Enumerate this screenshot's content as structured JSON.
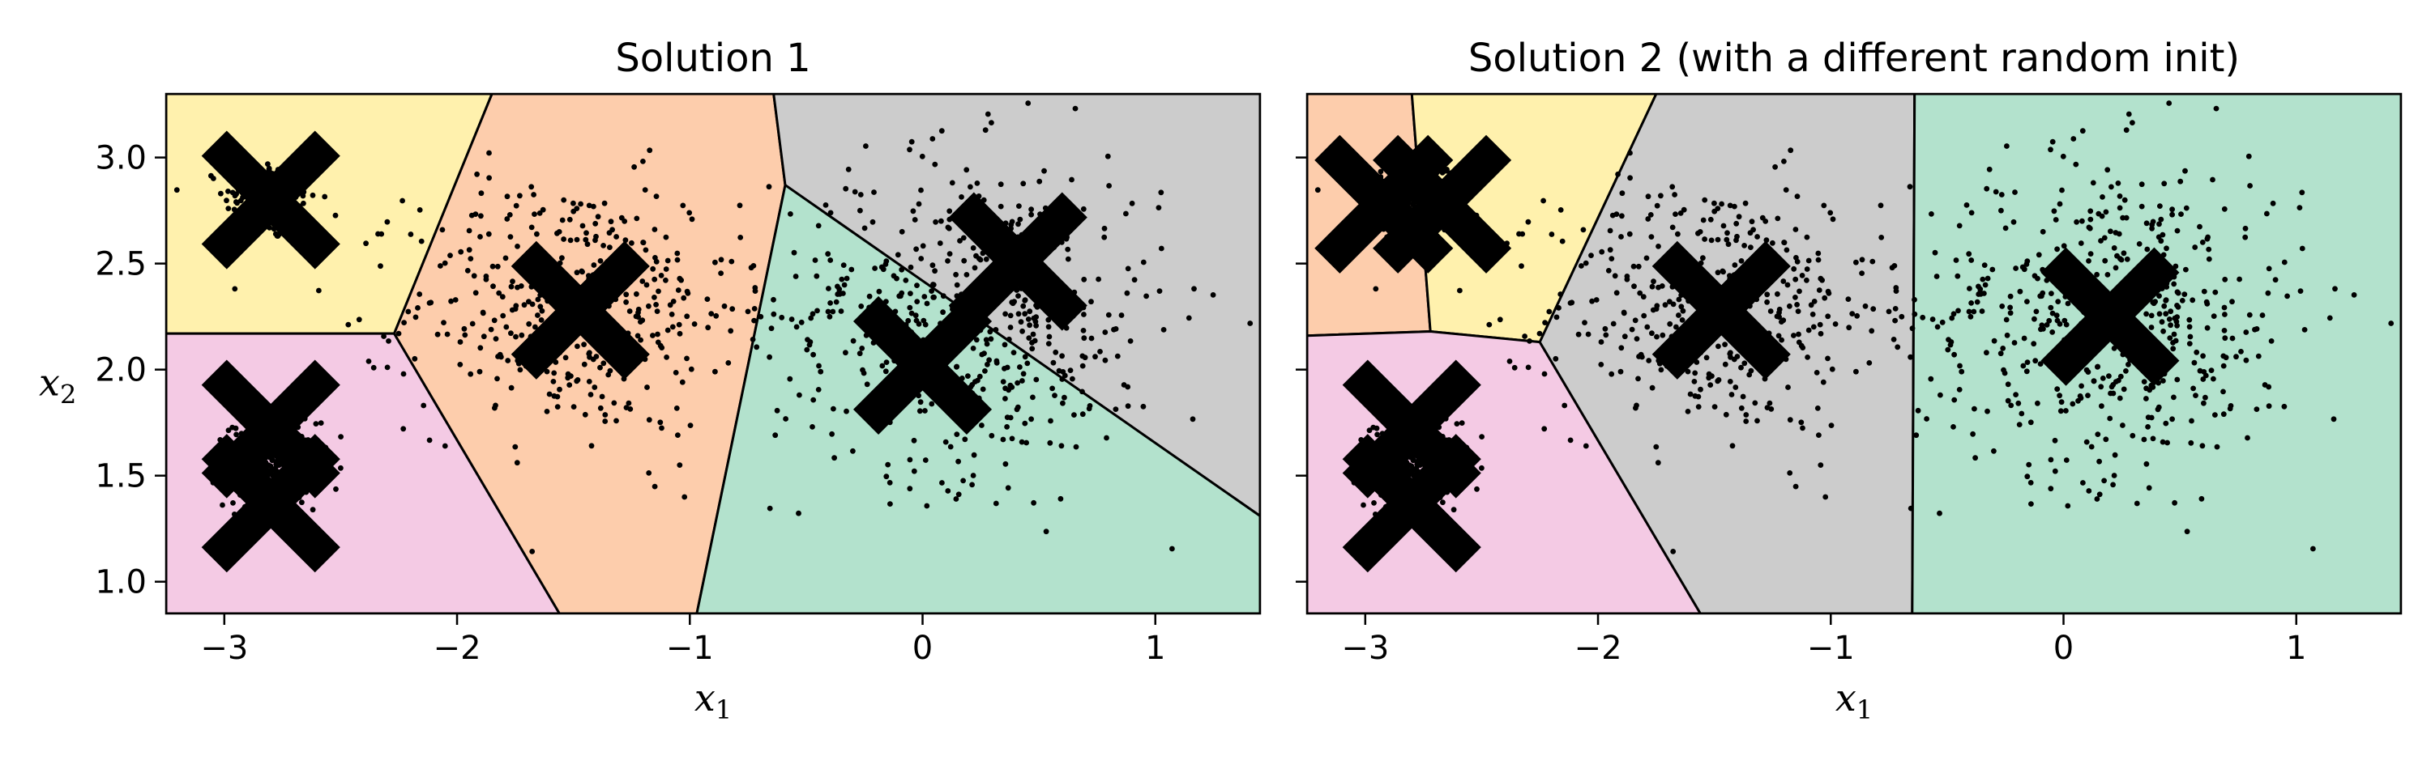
{
  "colors": {
    "yellow": "#fff1ad",
    "peach": "#fdcdac",
    "gray": "#cccccc",
    "green": "#b3e2cd",
    "pink": "#f4cae4",
    "points": "#000000",
    "centroid": "#000000"
  },
  "chart_data": [
    {
      "type": "scatter",
      "title": "Solution 1",
      "xlabel": "x",
      "xlabel_sub": "1",
      "ylabel": "x",
      "ylabel_sub": "2",
      "xlim": [
        -3.25,
        1.45
      ],
      "ylim": [
        0.85,
        3.3
      ],
      "xticks": [
        -3,
        -2,
        -1,
        0,
        1
      ],
      "xtick_labels": [
        "−3",
        "−2",
        "−1",
        "0",
        "1"
      ],
      "yticks": [
        1.0,
        1.5,
        2.0,
        2.5,
        3.0
      ],
      "ytick_labels": [
        "1.0",
        "1.5",
        "2.0",
        "2.5",
        "3.0"
      ],
      "grid": false,
      "regions": [
        {
          "color": "yellow",
          "polygon": [
            [
              -3.25,
              3.3
            ],
            [
              -1.85,
              3.3
            ],
            [
              -2.27,
              2.17
            ],
            [
              -3.25,
              2.17
            ]
          ]
        },
        {
          "color": "pink",
          "polygon": [
            [
              -3.25,
              2.17
            ],
            [
              -2.27,
              2.17
            ],
            [
              -1.56,
              0.85
            ],
            [
              -3.25,
              0.85
            ]
          ]
        },
        {
          "color": "peach",
          "polygon": [
            [
              -1.85,
              3.3
            ],
            [
              -0.64,
              3.3
            ],
            [
              -0.59,
              2.87
            ],
            [
              -0.97,
              0.85
            ],
            [
              -1.56,
              0.85
            ],
            [
              -2.27,
              2.17
            ]
          ]
        },
        {
          "color": "gray",
          "polygon": [
            [
              -0.64,
              3.3
            ],
            [
              1.45,
              3.3
            ],
            [
              1.45,
              1.31
            ],
            [
              -0.59,
              2.87
            ]
          ]
        },
        {
          "color": "green",
          "polygon": [
            [
              -0.59,
              2.87
            ],
            [
              1.45,
              1.31
            ],
            [
              1.45,
              0.85
            ],
            [
              -0.97,
              0.85
            ]
          ]
        }
      ],
      "clusters": [
        {
          "cx": -2.8,
          "cy": 2.8,
          "sx": 0.1,
          "sy": 0.1,
          "n": 200
        },
        {
          "cx": -2.8,
          "cy": 1.55,
          "sx": 0.1,
          "sy": 0.1,
          "n": 400
        },
        {
          "cx": -1.5,
          "cy": 2.3,
          "sx": 0.35,
          "sy": 0.3,
          "n": 420
        },
        {
          "cx": 0.2,
          "cy": 2.25,
          "sx": 0.42,
          "sy": 0.38,
          "n": 520
        }
      ],
      "centroids": [
        {
          "x": -2.8,
          "y": 2.8
        },
        {
          "x": -2.8,
          "y": 1.72
        },
        {
          "x": -2.8,
          "y": 1.37
        },
        {
          "x": -1.47,
          "y": 2.28
        },
        {
          "x": 0.0,
          "y": 2.02
        },
        {
          "x": 0.41,
          "y": 2.51
        }
      ]
    },
    {
      "type": "scatter",
      "title": "Solution 2 (with a different random init)",
      "xlabel": "x",
      "xlabel_sub": "1",
      "ylabel": "",
      "ylabel_sub": "",
      "xlim": [
        -3.25,
        1.45
      ],
      "ylim": [
        0.85,
        3.3
      ],
      "xticks": [
        -3,
        -2,
        -1,
        0,
        1
      ],
      "xtick_labels": [
        "−3",
        "−2",
        "−1",
        "0",
        "1"
      ],
      "yticks": [
        1.0,
        1.5,
        2.0,
        2.5,
        3.0
      ],
      "ytick_labels": [],
      "grid": false,
      "regions": [
        {
          "color": "peach",
          "polygon": [
            [
              -3.25,
              3.3
            ],
            [
              -2.8,
              3.3
            ],
            [
              -2.72,
              2.18
            ],
            [
              -3.25,
              2.16
            ]
          ]
        },
        {
          "color": "yellow",
          "polygon": [
            [
              -2.8,
              3.3
            ],
            [
              -1.75,
              3.3
            ],
            [
              -2.25,
              2.13
            ],
            [
              -2.72,
              2.18
            ]
          ]
        },
        {
          "color": "pink",
          "polygon": [
            [
              -3.25,
              2.16
            ],
            [
              -2.72,
              2.18
            ],
            [
              -2.25,
              2.13
            ],
            [
              -1.56,
              0.85
            ],
            [
              -3.25,
              0.85
            ]
          ]
        },
        {
          "color": "gray",
          "polygon": [
            [
              -1.75,
              3.3
            ],
            [
              -0.64,
              3.3
            ],
            [
              -0.65,
              0.85
            ],
            [
              -1.56,
              0.85
            ],
            [
              -2.25,
              2.13
            ]
          ]
        },
        {
          "color": "green",
          "polygon": [
            [
              -0.64,
              3.3
            ],
            [
              1.45,
              3.3
            ],
            [
              1.45,
              0.85
            ],
            [
              -0.65,
              0.85
            ]
          ]
        }
      ],
      "clusters": [
        {
          "cx": -2.8,
          "cy": 2.8,
          "sx": 0.1,
          "sy": 0.1,
          "n": 200
        },
        {
          "cx": -2.8,
          "cy": 1.55,
          "sx": 0.1,
          "sy": 0.1,
          "n": 400
        },
        {
          "cx": -1.5,
          "cy": 2.3,
          "sx": 0.35,
          "sy": 0.3,
          "n": 420
        },
        {
          "cx": 0.2,
          "cy": 2.25,
          "sx": 0.42,
          "sy": 0.38,
          "n": 520
        }
      ],
      "centroids": [
        {
          "x": -2.92,
          "y": 2.78
        },
        {
          "x": -2.67,
          "y": 2.78
        },
        {
          "x": -2.8,
          "y": 1.72
        },
        {
          "x": -2.8,
          "y": 1.37
        },
        {
          "x": -1.47,
          "y": 2.28
        },
        {
          "x": 0.2,
          "y": 2.25
        }
      ]
    }
  ]
}
